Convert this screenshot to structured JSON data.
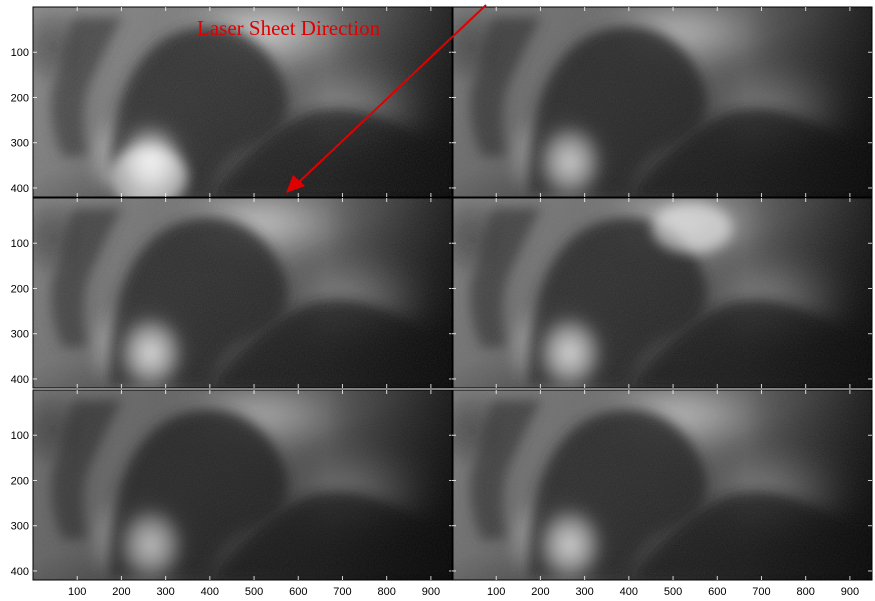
{
  "annotation": {
    "text": "Laser Sheet Direction",
    "color": "#e00000"
  },
  "panels": {
    "rows": 3,
    "cols": 2,
    "x_range": [
      0,
      950
    ],
    "y_range": [
      0,
      420
    ],
    "x_ticks": [
      100,
      200,
      300,
      400,
      500,
      600,
      700,
      800,
      900
    ],
    "y_ticks": [
      100,
      200,
      300,
      400
    ]
  },
  "images": [
    {
      "id": "row1-left",
      "tone": "bright-bottom"
    },
    {
      "id": "row1-right",
      "tone": "medium"
    },
    {
      "id": "row2-left",
      "tone": "medium"
    },
    {
      "id": "row2-right",
      "tone": "bright-top"
    },
    {
      "id": "row3-left",
      "tone": "dark"
    },
    {
      "id": "row3-right",
      "tone": "medium"
    }
  ]
}
